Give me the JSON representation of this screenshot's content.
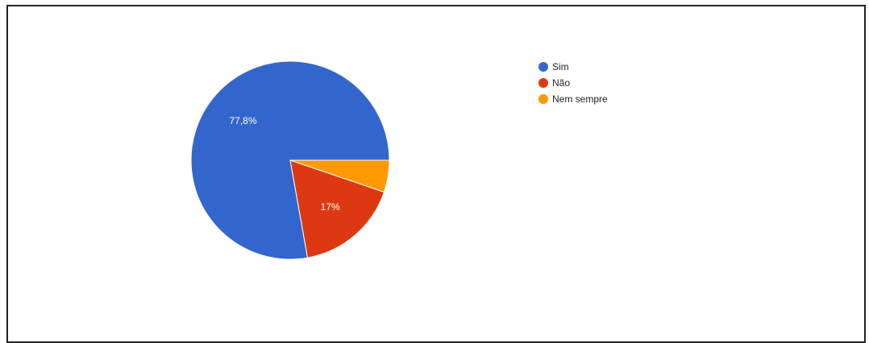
{
  "chart_data": {
    "type": "pie",
    "title": "",
    "legend_position": "right",
    "slices": [
      {
        "label": "Sim",
        "value": 77.8,
        "value_label": "77,8%",
        "color": "#3366cc"
      },
      {
        "label": "Não",
        "value": 17.0,
        "value_label": "17%",
        "color": "#dc3912"
      },
      {
        "label": "Nem sempre",
        "value": 5.2,
        "value_label": "",
        "color": "#ff9900"
      }
    ]
  }
}
